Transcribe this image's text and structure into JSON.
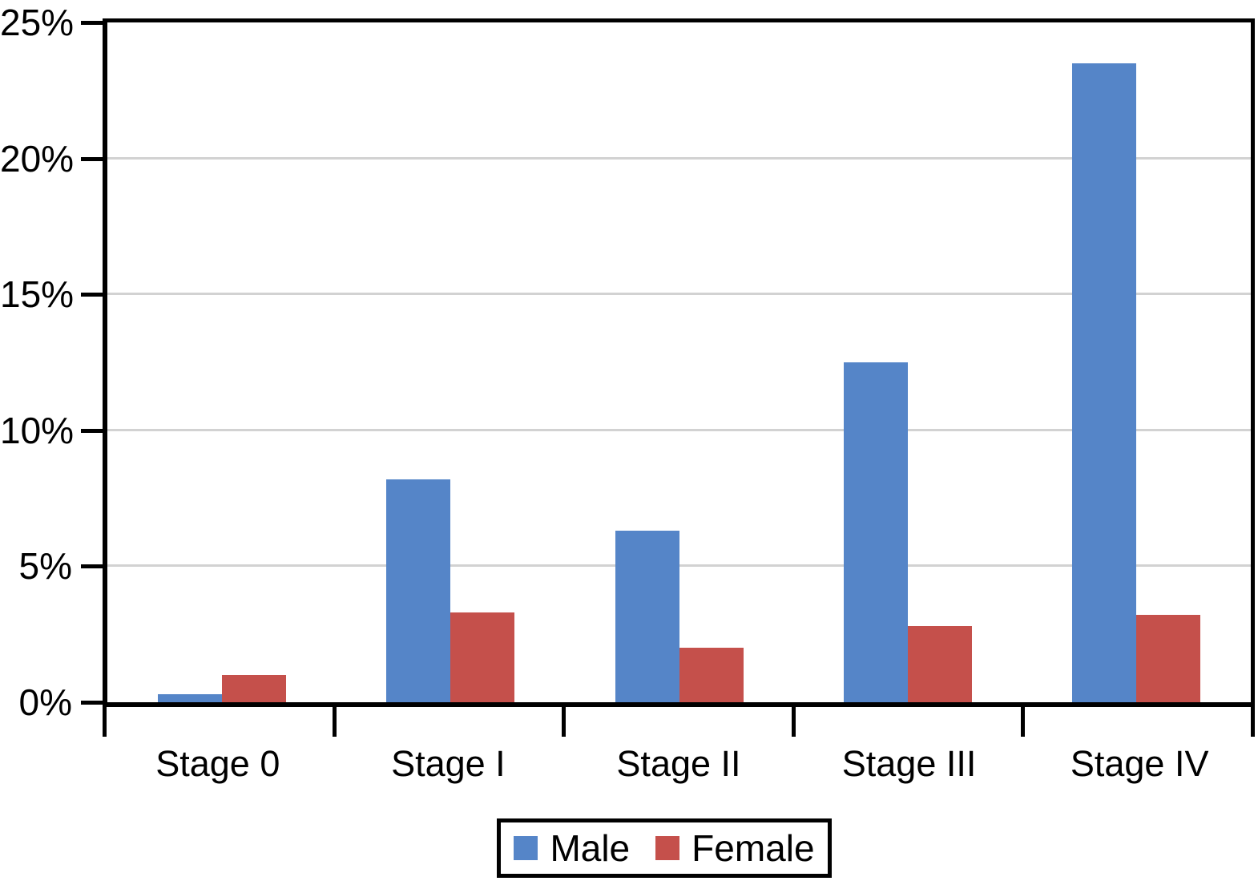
{
  "chart_data": {
    "type": "bar",
    "title": "",
    "xlabel": "",
    "ylabel": "",
    "categories": [
      "Stage 0",
      "Stage I",
      "Stage II",
      "Stage III",
      "Stage IV"
    ],
    "series": [
      {
        "name": "Male",
        "color": "#5585C8",
        "values": [
          0.3,
          8.2,
          6.3,
          12.5,
          23.5
        ]
      },
      {
        "name": "Female",
        "color": "#C5504B",
        "values": [
          1.0,
          3.3,
          2.0,
          2.8,
          3.2
        ]
      }
    ],
    "ylim": [
      0,
      25
    ],
    "y_ticks": [
      {
        "value": 0,
        "label": "0%"
      },
      {
        "value": 5,
        "label": "5%"
      },
      {
        "value": 10,
        "label": "10%"
      },
      {
        "value": 15,
        "label": "15%"
      },
      {
        "value": 20,
        "label": "20%"
      },
      {
        "value": 25,
        "label": "25%"
      }
    ],
    "gridlines": [
      5,
      10,
      15,
      20
    ],
    "grid": true,
    "legend_position": "bottom",
    "colors": {
      "axis": "#000000",
      "gridline": "#d2d2d2",
      "background": "#ffffff"
    }
  }
}
